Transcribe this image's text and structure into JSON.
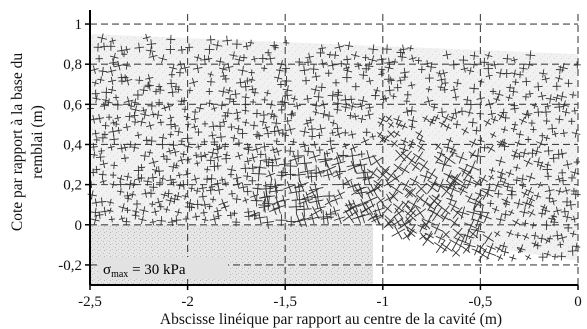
{
  "chart_data": {
    "type": "scatter",
    "title": "",
    "xlabel": "Abscisse linéique par rapport au centre de la cavité (m)",
    "ylabel_line1": "Cote par rapport à la base du",
    "ylabel_line2": "remblai (m)",
    "xlim": [
      -2.5,
      0
    ],
    "ylim": [
      -0.3,
      1.05
    ],
    "xticks": [
      -2.5,
      -2,
      -1.5,
      -1,
      -0.5,
      0
    ],
    "xtick_labels": [
      "-2,5",
      "-2",
      "-1,5",
      "-1",
      "-0,5",
      "0"
    ],
    "yticks": [
      -0.2,
      0,
      0.2,
      0.4,
      0.6,
      0.8,
      1
    ],
    "ytick_labels": [
      "-0,2",
      "0",
      "0,2",
      "0,4",
      "0,6",
      "0,8",
      "1"
    ],
    "grid": true,
    "grid_style": "dashed",
    "annotation": {
      "sigma": "σ",
      "subscript": "max",
      "text": " = 30 kPa"
    },
    "regions": {
      "embankment": {
        "x": [
          -2.5,
          0
        ],
        "y_top_left": 0.95,
        "y_top_right": 0.85
      },
      "support": {
        "x": [
          -2.5,
          -1.05
        ],
        "y": [
          -0.3,
          0
        ]
      },
      "cavity_edge_x": -1.05
    },
    "colors": {
      "marks": "#333333",
      "shade": "#d6d6d6",
      "grid": "#444444",
      "background": "#ffffff"
    }
  }
}
